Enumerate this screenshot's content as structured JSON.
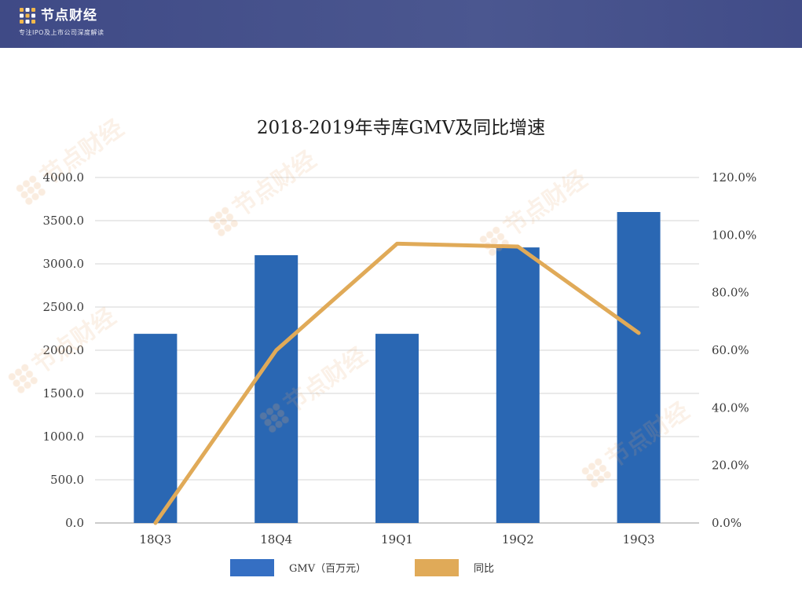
{
  "header": {
    "brand_name": "节点财经",
    "tagline": "专注IPO及上市公司深度解读",
    "logo_icon": "grid-logo-icon",
    "background": "#434e8a"
  },
  "watermark_text": "节点财经",
  "chart_data": {
    "type": "bar+line",
    "title": "2018-2019年寺库GMV及同比增速",
    "categories": [
      "18Q3",
      "18Q4",
      "19Q1",
      "19Q2",
      "19Q3"
    ],
    "series": [
      {
        "name": "GMV（百万元）",
        "type": "bar",
        "axis": "left",
        "color": "#2a67b3",
        "values": [
          2190,
          3100,
          2190,
          3190,
          3600
        ]
      },
      {
        "name": "同比",
        "type": "line",
        "axis": "right",
        "color": "#e0aa58",
        "values": [
          0.0,
          60.0,
          97.0,
          96.0,
          66.0
        ]
      }
    ],
    "y_left": {
      "range": [
        0,
        4000
      ],
      "ticks": [
        "0.0",
        "500.0",
        "1000.0",
        "1500.0",
        "2000.0",
        "2500.0",
        "3000.0",
        "3500.0",
        "4000.0"
      ]
    },
    "y_right": {
      "range": [
        0,
        120
      ],
      "ticks": [
        "0.0%",
        "20.0%",
        "40.0%",
        "60.0%",
        "80.0%",
        "100.0%",
        "120.0%"
      ]
    },
    "grid": true,
    "legend_position": "bottom"
  }
}
